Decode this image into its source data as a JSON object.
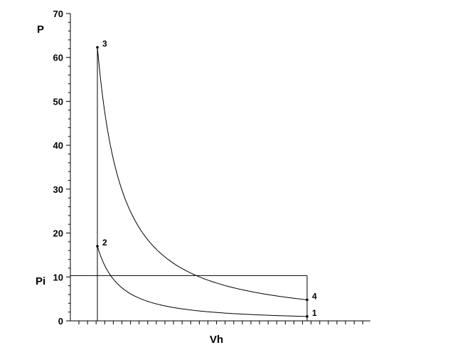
{
  "chart_data": {
    "type": "line",
    "ylabel": "P",
    "xlabel": "Vh",
    "pi_label": "Pi",
    "ylim": [
      0,
      70
    ],
    "yticks": [
      0,
      10,
      20,
      30,
      40,
      50,
      60,
      70
    ],
    "x_axis_labels": "none",
    "grid": false,
    "legend": "none",
    "pi_value": 10.3,
    "points": [
      {
        "label": "1",
        "x": 1.0,
        "y": 1.0
      },
      {
        "label": "2",
        "x": 0.0,
        "y": 17.0
      },
      {
        "label": "3",
        "x": 0.0,
        "y": 62.3
      },
      {
        "label": "4",
        "x": 1.0,
        "y": 4.8
      }
    ],
    "series": [
      {
        "x": [
          0.0,
          1.0
        ],
        "y": [
          17.0,
          1.0
        ],
        "curve": "polytropic"
      },
      {
        "x": [
          0.0,
          1.0
        ],
        "y": [
          62.3,
          4.8
        ],
        "curve": "polytropic"
      }
    ]
  }
}
